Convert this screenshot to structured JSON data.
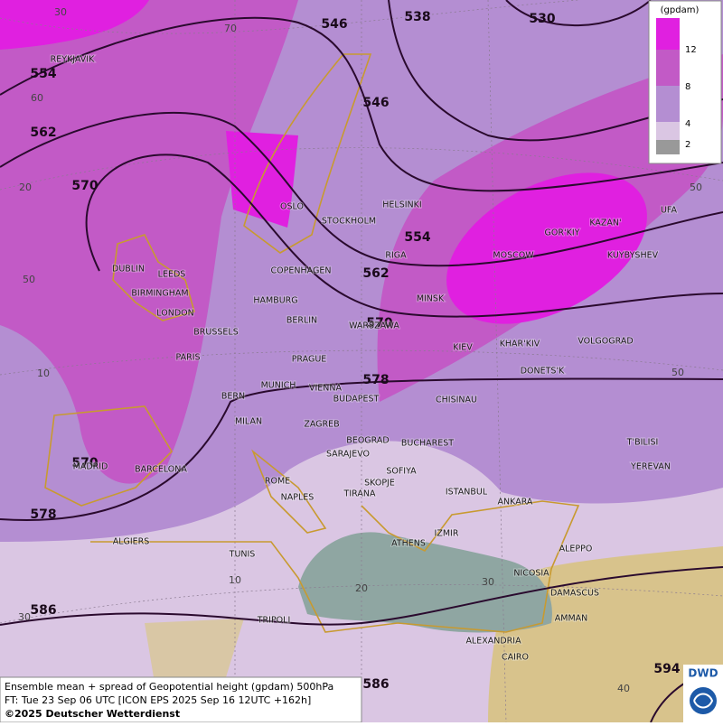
{
  "legend": {
    "title": "(gpdam)",
    "labels": [
      "12",
      "8",
      "4",
      "2"
    ]
  },
  "contour_labels": [
    "546",
    "538",
    "530",
    "554",
    "546",
    "562",
    "570",
    "554",
    "562",
    "570",
    "578",
    "570",
    "578",
    "586",
    "586",
    "594"
  ],
  "grid_labels": [
    "30",
    "70",
    "60",
    "20",
    "50",
    "10",
    "20",
    "30",
    "10",
    "30",
    "40",
    "50",
    "50"
  ],
  "cities": [
    "REYKJAVIK",
    "OSLO",
    "STOCKHOLM",
    "HELSINKI",
    "DUBLIN",
    "LEEDS",
    "BIRMINGHAM",
    "LONDON",
    "COPENHAGEN",
    "HAMBURG",
    "BERLIN",
    "RIGA",
    "MINSK",
    "MOSCOW",
    "GOR'KIY",
    "KAZAN'",
    "UFA",
    "KUYBYSHEV",
    "WARSZAWA",
    "KIEV",
    "KHAR'KIV",
    "VOLGOGRAD",
    "BRUSSELS",
    "PARIS",
    "PRAGUE",
    "DONETS'K",
    "BERN",
    "MUNICH",
    "VIENNA",
    "BUDAPEST",
    "CHISINAU",
    "MILAN",
    "ZAGREB",
    "BEOGRAD",
    "BUCHAREST",
    "T'BILISI",
    "MADRID",
    "BARCELONA",
    "SARAJEVO",
    "SOFIYA",
    "YEREVAN",
    "ROME",
    "NAPLES",
    "TIRANA",
    "SKOPJE",
    "ISTANBUL",
    "ANKARA",
    "ALGIERS",
    "TUNIS",
    "ATHENS",
    "IZMIR",
    "ALEPPO",
    "NICOSIA",
    "DAMASCUS",
    "TRIPOLI",
    "AMMAN",
    "ALEXANDRIA",
    "CAIRO"
  ],
  "footer": {
    "lines": [
      "Ensemble mean + spread of Geopotential height (gpdam) 500hPa",
      "FT: Tue 23 Sep 06 UTC [ICON EPS 2025 Sep 16 12UTC +162h]",
      "©2025 Deutscher Wetterdienst"
    ]
  },
  "logo": "DWD"
}
